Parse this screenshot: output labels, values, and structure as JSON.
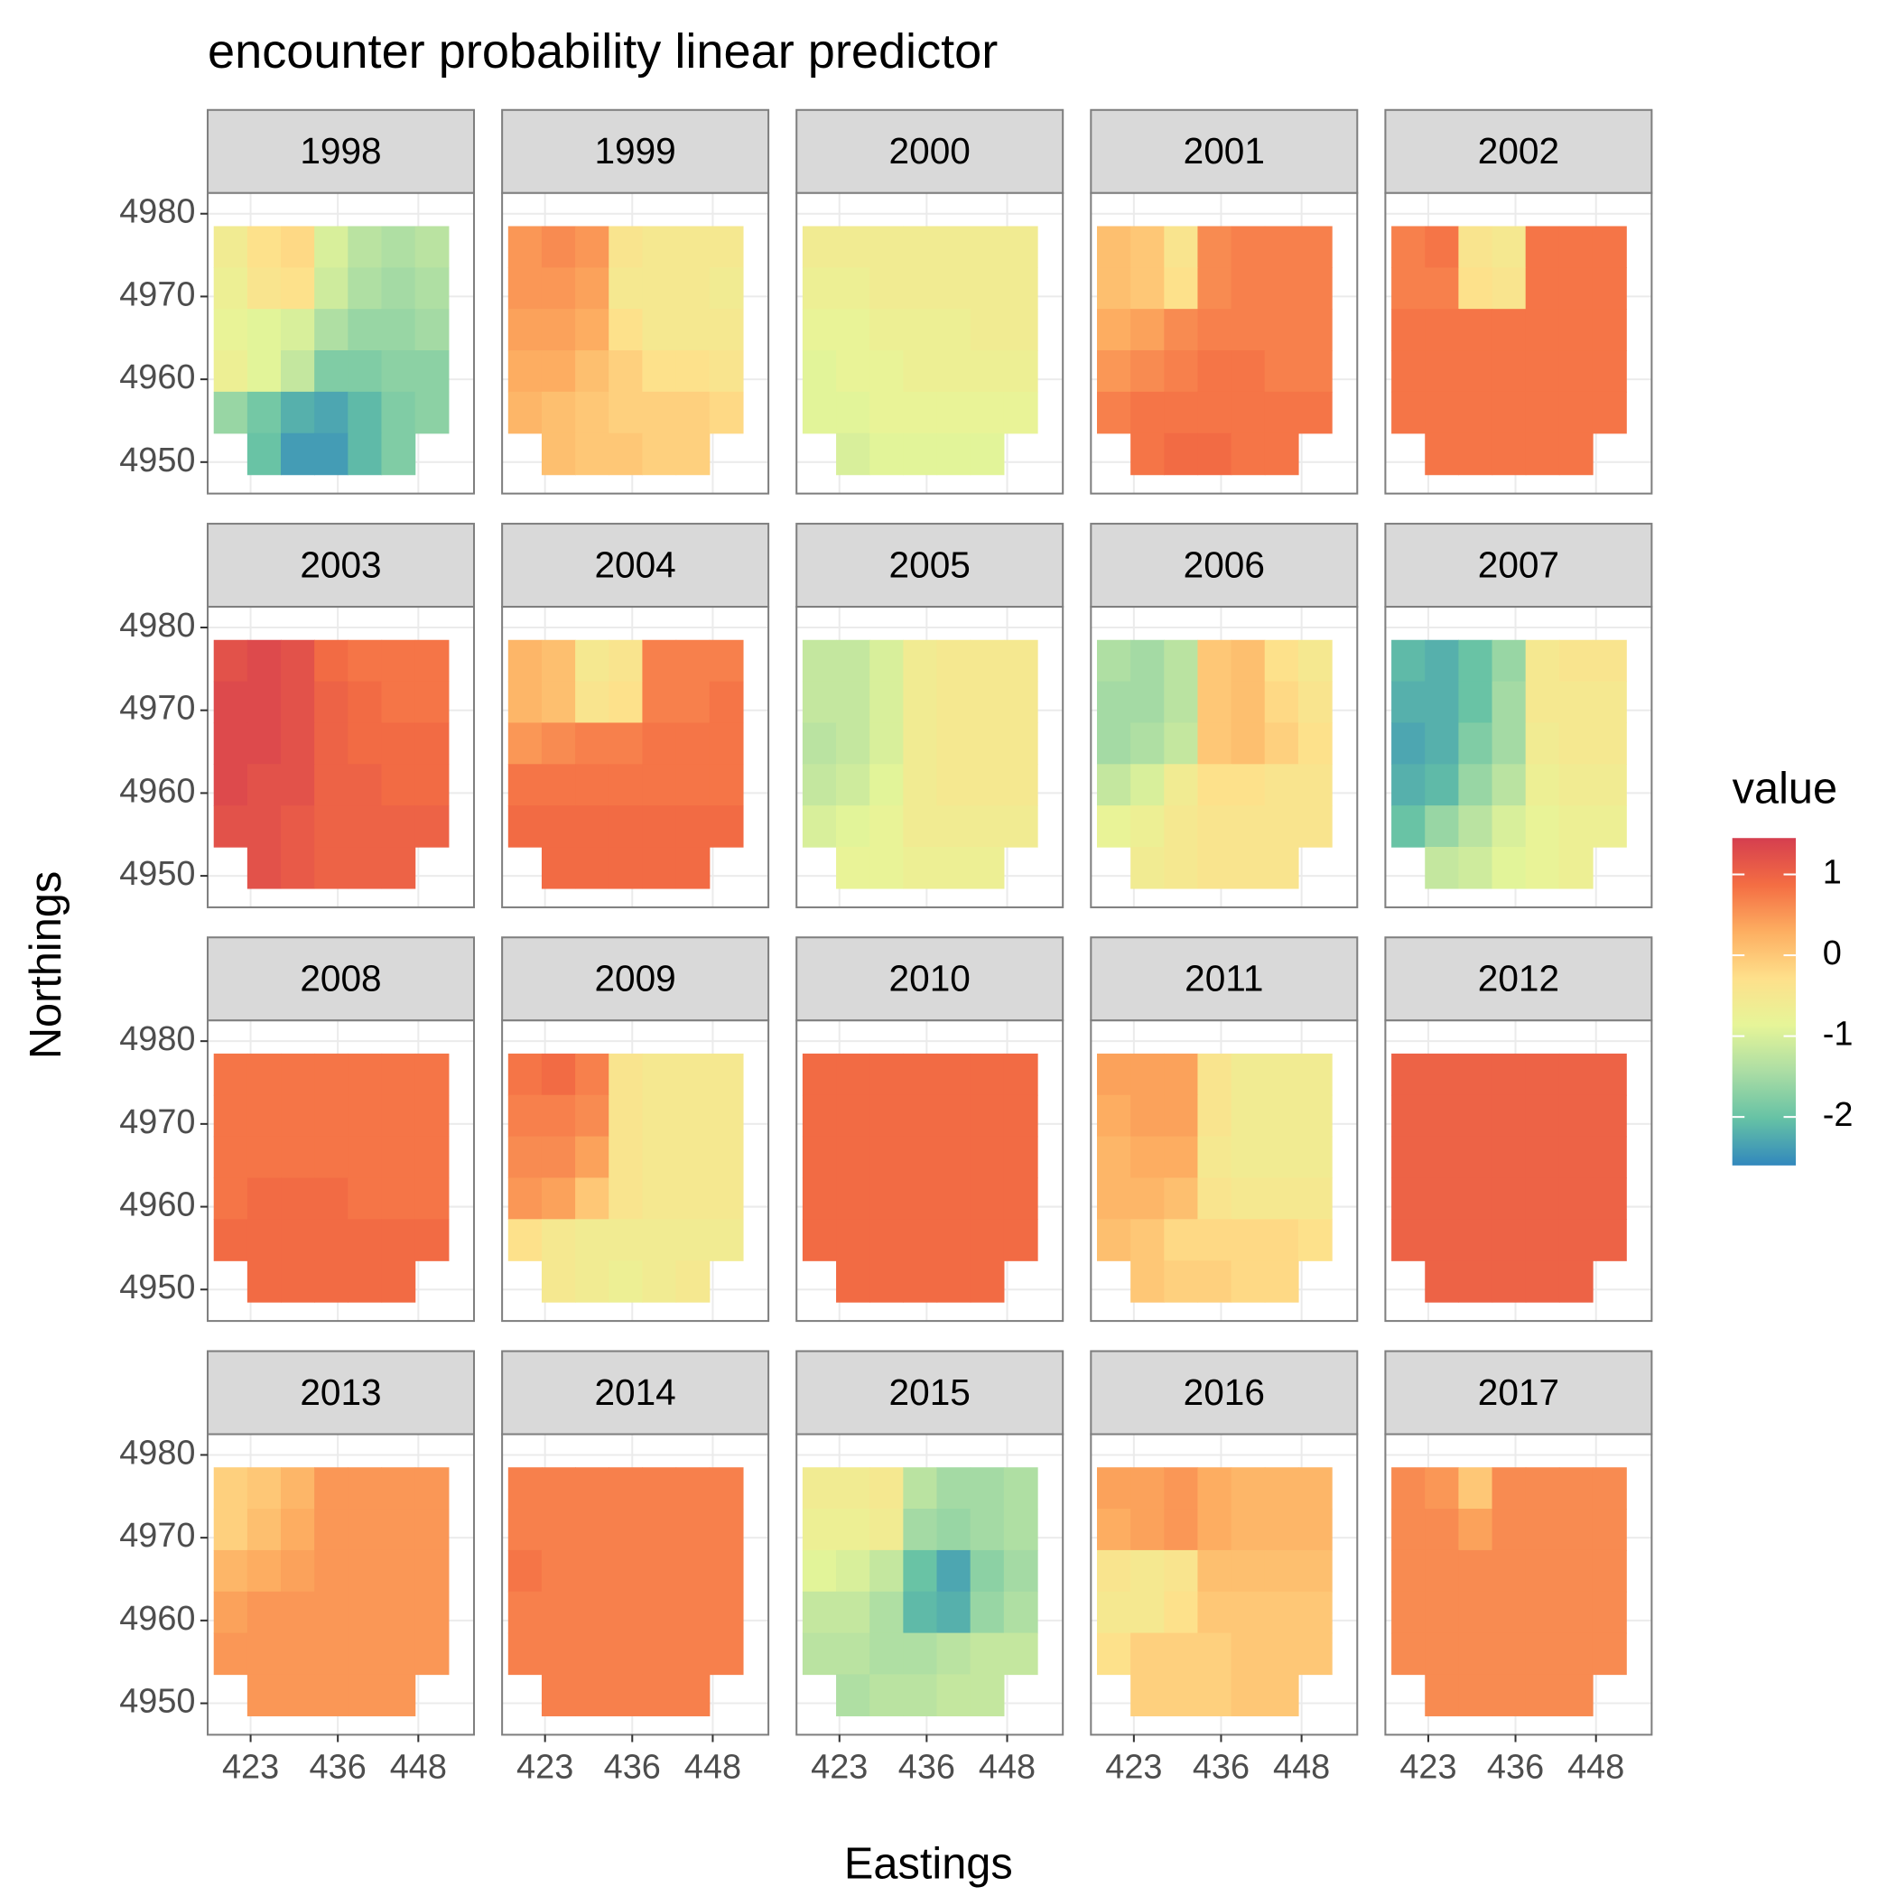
{
  "chart_data": {
    "type": "faceted-heatmap",
    "title": "encounter probability linear predictor",
    "x_label": "Eastings",
    "y_label": "Northings",
    "xlim": [
      416.6,
      456.3
    ],
    "ylim": [
      4946.2,
      4982.5
    ],
    "xticks": [
      423,
      436,
      448
    ],
    "yticks": [
      4950,
      4960,
      4970,
      4980
    ],
    "x": [
      420,
      425,
      430,
      435,
      440,
      445,
      450
    ],
    "y": [
      4976,
      4971,
      4966,
      4961,
      4956,
      4951
    ],
    "grid": true,
    "legend": {
      "title": "value",
      "position": "right",
      "limits": [
        -2.6,
        1.45
      ],
      "ticks": [
        -2,
        -1,
        0,
        1
      ],
      "colors": [
        "#3288bd",
        "#66c2a5",
        "#abdda4",
        "#e6f598",
        "#fee08b",
        "#fdae61",
        "#f46d43",
        "#d53e4f"
      ]
    },
    "panels": [
      {
        "label": "1998",
        "values": [
          [
            -0.6,
            -0.3,
            -0.2,
            -1.0,
            -1.3,
            -1.4,
            -1.3
          ],
          [
            -0.7,
            -0.4,
            -0.3,
            -1.1,
            -1.4,
            -1.5,
            -1.4
          ],
          [
            -0.8,
            -0.9,
            -1.0,
            -1.4,
            -1.6,
            -1.6,
            -1.5
          ],
          [
            -0.7,
            -0.9,
            -1.2,
            -1.8,
            -1.8,
            -1.7,
            -1.7
          ],
          [
            -1.6,
            -1.9,
            -2.2,
            -2.3,
            -2.1,
            -1.8,
            -1.7
          ],
          [
            null,
            -2.0,
            -2.4,
            -2.4,
            -2.1,
            -1.8,
            null
          ]
        ]
      },
      {
        "label": "1999",
        "values": [
          [
            0.5,
            0.6,
            0.5,
            -0.4,
            -0.5,
            -0.5,
            -0.5
          ],
          [
            0.5,
            0.5,
            0.4,
            -0.5,
            -0.5,
            -0.5,
            -0.6
          ],
          [
            0.4,
            0.4,
            0.3,
            -0.3,
            -0.5,
            -0.5,
            -0.5
          ],
          [
            0.3,
            0.3,
            0.1,
            -0.1,
            -0.3,
            -0.3,
            -0.4
          ],
          [
            0.2,
            0.1,
            0.0,
            -0.1,
            -0.1,
            -0.1,
            -0.2
          ],
          [
            null,
            0.1,
            0.0,
            0.0,
            -0.1,
            -0.1,
            null
          ]
        ]
      },
      {
        "label": "2000",
        "values": [
          [
            -0.6,
            -0.6,
            -0.6,
            -0.6,
            -0.6,
            -0.6,
            -0.6
          ],
          [
            -0.7,
            -0.7,
            -0.6,
            -0.6,
            -0.6,
            -0.6,
            -0.6
          ],
          [
            -0.8,
            -0.8,
            -0.7,
            -0.7,
            -0.7,
            -0.6,
            -0.6
          ],
          [
            -0.9,
            -0.8,
            -0.8,
            -0.7,
            -0.7,
            -0.7,
            -0.7
          ],
          [
            -0.9,
            -0.9,
            -0.8,
            -0.8,
            -0.8,
            -0.8,
            -0.8
          ],
          [
            null,
            -1.0,
            -0.9,
            -0.9,
            -0.9,
            -0.9,
            null
          ]
        ]
      },
      {
        "label": "2001",
        "values": [
          [
            0.1,
            0.0,
            -0.4,
            0.6,
            0.7,
            0.7,
            0.7
          ],
          [
            0.1,
            0.0,
            -0.3,
            0.6,
            0.7,
            0.7,
            0.7
          ],
          [
            0.3,
            0.4,
            0.6,
            0.7,
            0.7,
            0.7,
            0.7
          ],
          [
            0.5,
            0.6,
            0.7,
            0.8,
            0.8,
            0.7,
            0.7
          ],
          [
            0.7,
            0.8,
            0.8,
            0.8,
            0.8,
            0.8,
            0.8
          ],
          [
            null,
            0.8,
            0.9,
            0.9,
            0.8,
            0.8,
            null
          ]
        ]
      },
      {
        "label": "2002",
        "values": [
          [
            0.7,
            0.8,
            -0.4,
            -0.5,
            0.8,
            0.8,
            0.8
          ],
          [
            0.7,
            0.7,
            -0.3,
            -0.4,
            0.8,
            0.8,
            0.8
          ],
          [
            0.8,
            0.8,
            0.8,
            0.8,
            0.8,
            0.8,
            0.8
          ],
          [
            0.8,
            0.8,
            0.8,
            0.8,
            0.8,
            0.8,
            0.8
          ],
          [
            0.8,
            0.8,
            0.8,
            0.8,
            0.8,
            0.8,
            0.8
          ],
          [
            null,
            0.8,
            0.8,
            0.8,
            0.8,
            0.8,
            null
          ]
        ]
      },
      {
        "label": "2003",
        "values": [
          [
            1.2,
            1.3,
            1.2,
            0.9,
            0.8,
            0.8,
            0.8
          ],
          [
            1.3,
            1.3,
            1.2,
            1.0,
            0.9,
            0.8,
            0.8
          ],
          [
            1.3,
            1.3,
            1.2,
            1.0,
            0.9,
            0.9,
            0.9
          ],
          [
            1.3,
            1.2,
            1.2,
            1.0,
            1.0,
            0.9,
            0.9
          ],
          [
            1.2,
            1.2,
            1.1,
            1.0,
            1.0,
            1.0,
            1.0
          ],
          [
            null,
            1.2,
            1.1,
            1.0,
            1.0,
            1.0,
            null
          ]
        ]
      },
      {
        "label": "2004",
        "values": [
          [
            0.2,
            0.1,
            -0.5,
            -0.4,
            0.7,
            0.7,
            0.7
          ],
          [
            0.2,
            0.1,
            -0.4,
            -0.3,
            0.7,
            0.7,
            0.8
          ],
          [
            0.5,
            0.6,
            0.7,
            0.7,
            0.8,
            0.8,
            0.8
          ],
          [
            0.8,
            0.8,
            0.8,
            0.8,
            0.8,
            0.8,
            0.8
          ],
          [
            0.9,
            0.9,
            0.9,
            0.9,
            0.9,
            0.9,
            0.9
          ],
          [
            null,
            0.9,
            0.9,
            0.9,
            0.9,
            0.9,
            null
          ]
        ]
      },
      {
        "label": "2005",
        "values": [
          [
            -1.2,
            -1.2,
            -1.0,
            -0.6,
            -0.5,
            -0.5,
            -0.5
          ],
          [
            -1.2,
            -1.2,
            -1.0,
            -0.6,
            -0.5,
            -0.5,
            -0.5
          ],
          [
            -1.3,
            -1.2,
            -1.0,
            -0.6,
            -0.5,
            -0.5,
            -0.5
          ],
          [
            -1.2,
            -1.1,
            -0.9,
            -0.6,
            -0.5,
            -0.5,
            -0.5
          ],
          [
            -1.0,
            -0.9,
            -0.8,
            -0.6,
            -0.6,
            -0.6,
            -0.6
          ],
          [
            null,
            -0.8,
            -0.8,
            -0.7,
            -0.7,
            -0.7,
            null
          ]
        ]
      },
      {
        "label": "2006",
        "values": [
          [
            -1.4,
            -1.5,
            -1.3,
            0.0,
            0.1,
            -0.3,
            -0.5
          ],
          [
            -1.5,
            -1.5,
            -1.3,
            0.0,
            0.1,
            -0.2,
            -0.4
          ],
          [
            -1.5,
            -1.4,
            -1.2,
            0.0,
            0.1,
            -0.1,
            -0.3
          ],
          [
            -1.2,
            -1.0,
            -0.6,
            -0.3,
            -0.3,
            -0.4,
            -0.4
          ],
          [
            -0.8,
            -0.7,
            -0.5,
            -0.4,
            -0.4,
            -0.4,
            -0.4
          ],
          [
            null,
            -0.6,
            -0.5,
            -0.4,
            -0.4,
            -0.4,
            null
          ]
        ]
      },
      {
        "label": "2007",
        "values": [
          [
            -2.1,
            -2.2,
            -2.0,
            -1.6,
            -0.5,
            -0.4,
            -0.4
          ],
          [
            -2.2,
            -2.2,
            -2.0,
            -1.5,
            -0.5,
            -0.5,
            -0.5
          ],
          [
            -2.3,
            -2.2,
            -1.8,
            -1.5,
            -0.6,
            -0.5,
            -0.5
          ],
          [
            -2.2,
            -2.1,
            -1.6,
            -1.3,
            -0.7,
            -0.6,
            -0.6
          ],
          [
            -2.0,
            -1.6,
            -1.3,
            -1.0,
            -0.8,
            -0.7,
            -0.7
          ],
          [
            null,
            -1.2,
            -1.1,
            -0.9,
            -0.8,
            -0.7,
            null
          ]
        ]
      },
      {
        "label": "2008",
        "values": [
          [
            0.8,
            0.8,
            0.8,
            0.8,
            0.8,
            0.8,
            0.8
          ],
          [
            0.8,
            0.8,
            0.8,
            0.8,
            0.8,
            0.8,
            0.8
          ],
          [
            0.8,
            0.8,
            0.8,
            0.8,
            0.8,
            0.8,
            0.8
          ],
          [
            0.8,
            0.9,
            0.9,
            0.9,
            0.8,
            0.8,
            0.8
          ],
          [
            0.9,
            0.9,
            0.9,
            0.9,
            0.9,
            0.9,
            0.9
          ],
          [
            null,
            0.9,
            0.9,
            0.9,
            0.9,
            0.9,
            null
          ]
        ]
      },
      {
        "label": "2009",
        "values": [
          [
            0.8,
            0.9,
            0.7,
            -0.4,
            -0.5,
            -0.5,
            -0.5
          ],
          [
            0.7,
            0.7,
            0.6,
            -0.4,
            -0.5,
            -0.5,
            -0.5
          ],
          [
            0.6,
            0.6,
            0.4,
            -0.4,
            -0.5,
            -0.5,
            -0.5
          ],
          [
            0.5,
            0.4,
            0.0,
            -0.4,
            -0.5,
            -0.5,
            -0.5
          ],
          [
            -0.3,
            -0.5,
            -0.6,
            -0.6,
            -0.6,
            -0.6,
            -0.6
          ],
          [
            null,
            -0.5,
            -0.6,
            -0.7,
            -0.6,
            -0.5,
            null
          ]
        ]
      },
      {
        "label": "2010",
        "values": [
          [
            0.9,
            0.9,
            0.9,
            0.9,
            0.9,
            0.9,
            0.9
          ],
          [
            0.9,
            0.9,
            0.9,
            0.9,
            0.9,
            0.9,
            0.9
          ],
          [
            0.9,
            0.9,
            0.9,
            0.9,
            0.9,
            0.9,
            0.9
          ],
          [
            0.9,
            0.9,
            0.9,
            0.9,
            0.9,
            0.9,
            0.9
          ],
          [
            0.9,
            0.9,
            0.9,
            0.9,
            0.9,
            0.9,
            0.9
          ],
          [
            null,
            0.9,
            0.9,
            0.9,
            0.9,
            0.9,
            null
          ]
        ]
      },
      {
        "label": "2011",
        "values": [
          [
            0.4,
            0.4,
            0.4,
            -0.4,
            -0.6,
            -0.6,
            -0.6
          ],
          [
            0.3,
            0.4,
            0.4,
            -0.4,
            -0.6,
            -0.6,
            -0.6
          ],
          [
            0.2,
            0.3,
            0.3,
            -0.5,
            -0.6,
            -0.6,
            -0.6
          ],
          [
            0.2,
            0.2,
            0.1,
            -0.4,
            -0.5,
            -0.5,
            -0.5
          ],
          [
            0.1,
            0.0,
            -0.2,
            -0.2,
            -0.2,
            -0.2,
            -0.3
          ],
          [
            null,
            0.0,
            -0.1,
            -0.1,
            -0.2,
            -0.2,
            null
          ]
        ]
      },
      {
        "label": "2012",
        "values": [
          [
            1.0,
            1.0,
            1.0,
            1.0,
            1.0,
            1.0,
            1.0
          ],
          [
            1.0,
            1.0,
            1.0,
            1.0,
            1.0,
            1.0,
            1.0
          ],
          [
            1.0,
            1.0,
            1.0,
            1.0,
            1.0,
            1.0,
            1.0
          ],
          [
            1.0,
            1.0,
            1.0,
            1.0,
            1.0,
            1.0,
            1.0
          ],
          [
            1.0,
            1.0,
            1.0,
            1.0,
            1.0,
            1.0,
            1.0
          ],
          [
            null,
            1.0,
            1.0,
            1.0,
            1.0,
            1.0,
            null
          ]
        ]
      },
      {
        "label": "2013",
        "values": [
          [
            -0.1,
            0.0,
            0.2,
            0.5,
            0.5,
            0.5,
            0.5
          ],
          [
            -0.1,
            0.1,
            0.3,
            0.5,
            0.5,
            0.5,
            0.5
          ],
          [
            0.2,
            0.3,
            0.4,
            0.5,
            0.5,
            0.5,
            0.5
          ],
          [
            0.4,
            0.5,
            0.5,
            0.5,
            0.5,
            0.5,
            0.5
          ],
          [
            0.5,
            0.5,
            0.5,
            0.5,
            0.5,
            0.5,
            0.5
          ],
          [
            null,
            0.5,
            0.5,
            0.5,
            0.5,
            0.5,
            null
          ]
        ]
      },
      {
        "label": "2014",
        "values": [
          [
            0.7,
            0.7,
            0.7,
            0.7,
            0.7,
            0.7,
            0.7
          ],
          [
            0.7,
            0.7,
            0.7,
            0.7,
            0.7,
            0.7,
            0.7
          ],
          [
            0.8,
            0.7,
            0.7,
            0.7,
            0.7,
            0.7,
            0.7
          ],
          [
            0.7,
            0.7,
            0.7,
            0.7,
            0.7,
            0.7,
            0.7
          ],
          [
            0.7,
            0.7,
            0.7,
            0.7,
            0.7,
            0.7,
            0.7
          ],
          [
            null,
            0.7,
            0.7,
            0.7,
            0.7,
            0.7,
            null
          ]
        ]
      },
      {
        "label": "2015",
        "values": [
          [
            -0.6,
            -0.6,
            -0.5,
            -1.3,
            -1.5,
            -1.5,
            -1.4
          ],
          [
            -0.7,
            -0.7,
            -0.6,
            -1.5,
            -1.6,
            -1.5,
            -1.4
          ],
          [
            -0.9,
            -1.0,
            -1.2,
            -2.0,
            -2.3,
            -1.7,
            -1.5
          ],
          [
            -1.2,
            -1.2,
            -1.4,
            -2.1,
            -2.2,
            -1.6,
            -1.4
          ],
          [
            -1.3,
            -1.3,
            -1.4,
            -1.4,
            -1.3,
            -1.2,
            -1.2
          ],
          [
            null,
            -1.4,
            -1.3,
            -1.3,
            -1.2,
            -1.2,
            null
          ]
        ]
      },
      {
        "label": "2016",
        "values": [
          [
            0.4,
            0.4,
            0.5,
            0.3,
            0.2,
            0.2,
            0.2
          ],
          [
            0.3,
            0.4,
            0.5,
            0.3,
            0.2,
            0.2,
            0.2
          ],
          [
            -0.4,
            -0.5,
            -0.4,
            0.1,
            0.1,
            0.1,
            0.1
          ],
          [
            -0.5,
            -0.5,
            -0.3,
            0.0,
            0.0,
            0.0,
            0.0
          ],
          [
            -0.3,
            -0.1,
            -0.1,
            -0.1,
            0.0,
            0.0,
            0.0
          ],
          [
            null,
            -0.1,
            -0.1,
            -0.1,
            0.0,
            0.0,
            null
          ]
        ]
      },
      {
        "label": "2017",
        "values": [
          [
            0.6,
            0.5,
            0.0,
            0.6,
            0.6,
            0.6,
            0.6
          ],
          [
            0.6,
            0.6,
            0.4,
            0.6,
            0.6,
            0.6,
            0.6
          ],
          [
            0.6,
            0.6,
            0.6,
            0.6,
            0.6,
            0.6,
            0.6
          ],
          [
            0.6,
            0.6,
            0.6,
            0.6,
            0.6,
            0.6,
            0.6
          ],
          [
            0.6,
            0.6,
            0.6,
            0.6,
            0.6,
            0.6,
            0.6
          ],
          [
            null,
            0.6,
            0.6,
            0.6,
            0.6,
            0.6,
            null
          ]
        ]
      }
    ]
  }
}
